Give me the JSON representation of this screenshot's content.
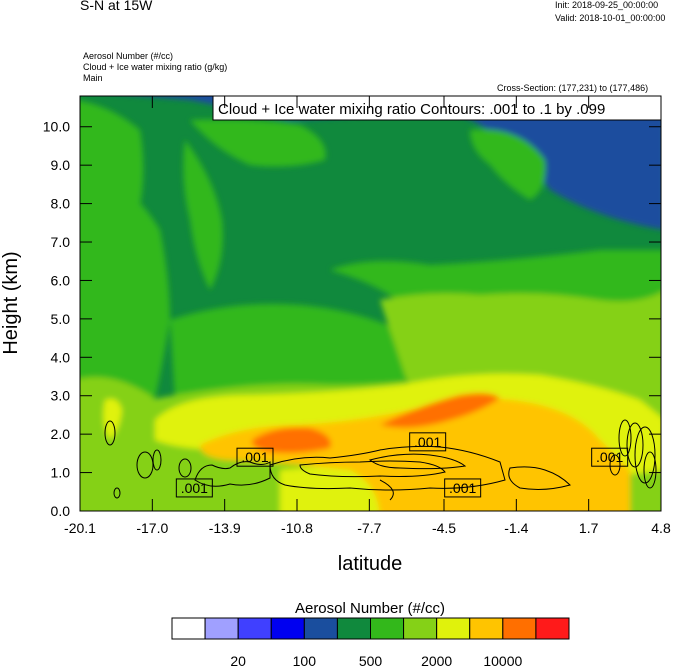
{
  "header": {
    "title": "S-N at 15W",
    "init": "Init: 2018-09-25_00:00:00",
    "valid": "Valid: 2018-10-01_00:00:00",
    "field1": "Aerosol Number   (#/cc)",
    "field2": "Cloud + Ice water mixing ratio   (g/kg)",
    "field3": "Main",
    "cross_section": "Cross-Section: (177,231) to (177,486)"
  },
  "chart_data": {
    "type": "heatmap",
    "title": "S-N at 15W",
    "xlabel": "latitude",
    "ylabel": "Height (km)",
    "xlim": [
      -20.1,
      4.8
    ],
    "ylim": [
      0.0,
      10.8
    ],
    "x_ticks": [
      "-20.1",
      "-17.0",
      "-13.9",
      "-10.8",
      "-7.7",
      "-4.5",
      "-1.4",
      "1.7",
      "4.8"
    ],
    "y_ticks": [
      "0.0",
      "1.0",
      "2.0",
      "3.0",
      "4.0",
      "5.0",
      "6.0",
      "7.0",
      "8.0",
      "9.0",
      "10.0"
    ],
    "contour_title": "Cloud + Ice water mixing ratio Contours: .001 to .1 by .099",
    "contour_labels": [
      {
        "text": ".001",
        "lat": -15.2,
        "h": 0.6
      },
      {
        "text": ".001",
        "lat": -12.6,
        "h": 1.4
      },
      {
        "text": ".001",
        "lat": -5.2,
        "h": 1.8
      },
      {
        "text": ".001",
        "lat": -3.7,
        "h": 0.6
      },
      {
        "text": ".001",
        "lat": 2.6,
        "h": 1.4
      }
    ],
    "colorbar": {
      "title": "Aerosol Number  (#/cc)",
      "colors": [
        "#ffffff",
        "#a0a0ff",
        "#4040ff",
        "#0000f0",
        "#1a4e9e",
        "#10893d",
        "#33b81b",
        "#85d117",
        "#e0f20c",
        "#ffc400",
        "#ff6f00",
        "#ff1a1a"
      ],
      "labels": [
        "20",
        "100",
        "500",
        "2000",
        "10000"
      ]
    }
  }
}
